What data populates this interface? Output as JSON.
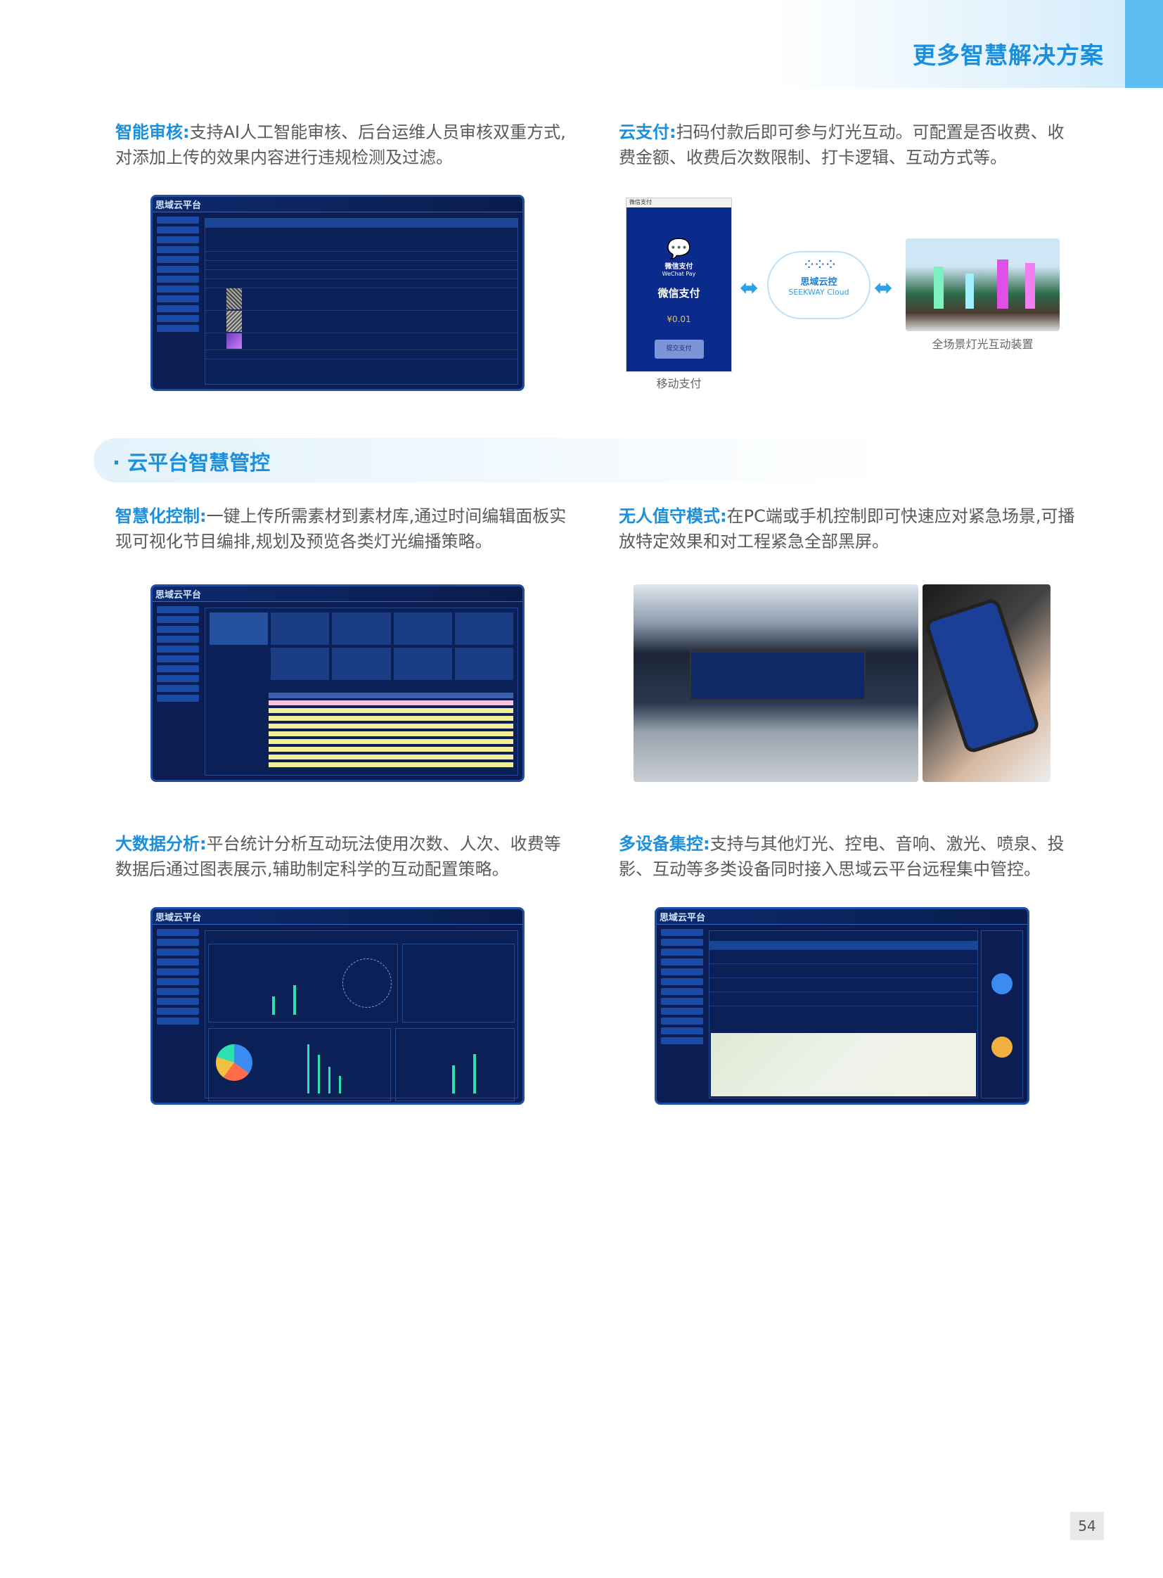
{
  "header": {
    "title": "更多智慧解决方案"
  },
  "sections": [
    {
      "label": "智能审核:",
      "text": "支持AI人工智能审核、后台运维人员审核双重方式,对添加上传的效果内容进行违规检测及过滤。"
    },
    {
      "label": "云支付:",
      "text": "扫码付款后即可参与灯光互动。可配置是否收费、收费金额、收费后次数限制、打卡逻辑、互动方式等。"
    },
    {
      "label": "智慧化控制:",
      "text": "一键上传所需素材到素材库,通过时间编辑面板实现可视化节目编排,规划及预览各类灯光编播策略。"
    },
    {
      "label": "无人值守模式:",
      "text": "在PC端或手机控制即可快速应对紧急场景,可播放特定效果和对工程紧急全部黑屏。"
    },
    {
      "label": "大数据分析:",
      "text": "平台统计分析互动玩法使用次数、人次、收费等数据后通过图表展示,辅助制定科学的互动配置策略。"
    },
    {
      "label": "多设备集控:",
      "text": "支持与其他灯光、控电、音响、激光、喷泉、投影、互动等多类设备同时接入思域云平台远程集中管控。"
    }
  ],
  "banner": {
    "title": "· 云平台智慧管控"
  },
  "dashboard": {
    "logo": "思域云平台"
  },
  "payment": {
    "window_title": "微信支付",
    "brand_cn": "微信支付",
    "brand_en": "WeChat Pay",
    "heading": "微信支付",
    "amount": "¥0.01",
    "button": "提交支付",
    "caption": "移动支付"
  },
  "cloud": {
    "name_cn": "思域云控",
    "name_en": "SEEKWAY Cloud"
  },
  "device": {
    "caption": "全场景灯光互动装置"
  },
  "page_number": "54",
  "colors": {
    "accent": "#1c8fdc",
    "dashboard_bg": "#0b1d52",
    "wechat_bg": "#0a2a8c"
  }
}
